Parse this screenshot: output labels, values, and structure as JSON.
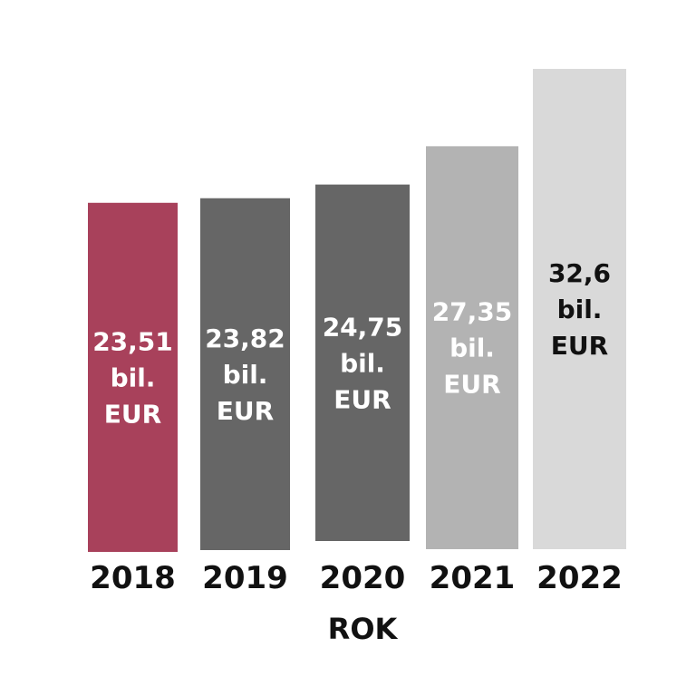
{
  "chart_data": {
    "type": "bar",
    "title": "",
    "xlabel": "ROK",
    "ylabel": "",
    "ylim": [
      0,
      32.6
    ],
    "grid": false,
    "legend": "none",
    "categories": [
      "2018",
      "2019",
      "2020",
      "2021",
      "2022"
    ],
    "values": [
      23.51,
      23.82,
      24.75,
      27.35,
      32.6
    ],
    "data_labels": [
      [
        "23,51",
        "bil.",
        "EUR"
      ],
      [
        "23,82",
        "bil.",
        "EUR"
      ],
      [
        "24,75",
        "bil.",
        "EUR"
      ],
      [
        "27,35",
        "bil.",
        "EUR"
      ],
      [
        "32,6",
        "bil.",
        "EUR"
      ]
    ],
    "bar_colors": [
      "#a8415b",
      "#666666",
      "#666666",
      "#b3b3b3",
      "#d9d9d9"
    ],
    "label_colors": [
      "#ffffff",
      "#ffffff",
      "#ffffff",
      "#ffffff",
      "#111111"
    ]
  }
}
